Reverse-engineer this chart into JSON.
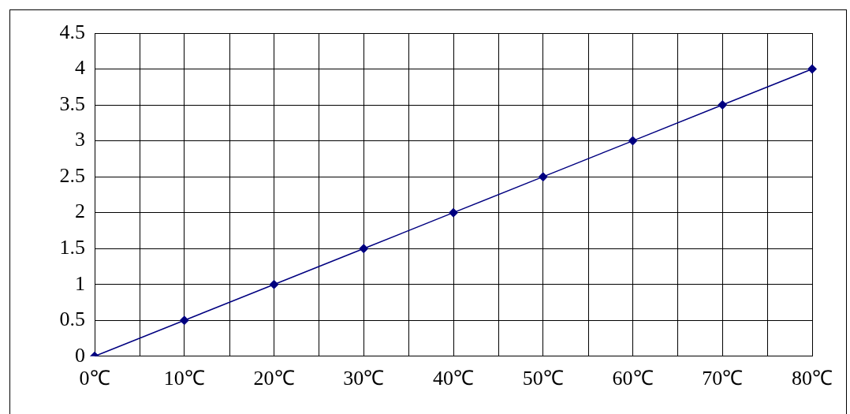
{
  "chart_data": {
    "type": "line",
    "categories": [
      "0℃",
      "10℃",
      "20℃",
      "30℃",
      "40℃",
      "50℃",
      "60℃",
      "70℃",
      "80℃"
    ],
    "series": [
      {
        "color": "#000080",
        "values": [
          0,
          0.5,
          1,
          1.5,
          2,
          2.5,
          3,
          3.5,
          4
        ]
      }
    ],
    "ylim": [
      0,
      4.5
    ],
    "yticks": [
      0,
      0.5,
      1,
      1.5,
      2,
      2.5,
      3,
      3.5,
      4,
      4.5
    ],
    "grid": true,
    "marker": "diamond",
    "line_style": "solid",
    "legend": false
  }
}
